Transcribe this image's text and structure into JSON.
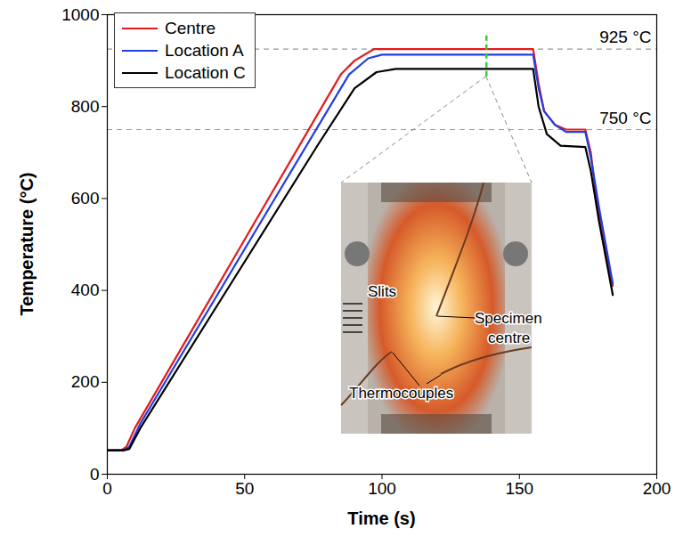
{
  "chart_data": {
    "type": "line",
    "xlabel": "Time (s)",
    "ylabel": "Temperature (°C)",
    "xlim": [
      0,
      200
    ],
    "xticks": [
      0,
      50,
      100,
      150,
      200
    ],
    "ylim": [
      0,
      1000
    ],
    "yticks": [
      0,
      200,
      400,
      600,
      800,
      1000
    ],
    "grid": false,
    "legend": "top-left",
    "series": [
      {
        "name": "Centre",
        "color": "#e41a1c",
        "x": [
          0,
          5,
          7,
          10,
          85,
          90,
          97,
          155,
          157,
          159,
          163,
          167,
          174,
          176,
          178,
          181,
          184
        ],
        "values": [
          52,
          52,
          60,
          100,
          870,
          900,
          925,
          925,
          850,
          790,
          760,
          750,
          750,
          700,
          600,
          500,
          410
        ]
      },
      {
        "name": "Location A",
        "color": "#1f3fe0",
        "x": [
          0,
          6,
          8,
          12,
          88,
          95,
          100,
          155,
          157,
          159,
          163,
          167,
          174,
          176,
          179,
          184
        ],
        "values": [
          52,
          52,
          60,
          110,
          870,
          905,
          913,
          913,
          840,
          790,
          760,
          745,
          745,
          690,
          580,
          415
        ]
      },
      {
        "name": "Location C",
        "color": "#000000",
        "x": [
          0,
          6,
          8,
          12,
          77,
          90,
          98,
          105,
          155,
          157,
          160,
          165,
          174,
          176,
          179,
          184
        ],
        "values": [
          52,
          52,
          55,
          100,
          720,
          840,
          875,
          882,
          882,
          800,
          740,
          715,
          712,
          660,
          550,
          390
        ]
      }
    ],
    "reference_lines": [
      {
        "y": 925,
        "label": "925 °C"
      },
      {
        "y": 750,
        "label": "750 °C"
      }
    ],
    "marker_time": 138,
    "inset_labels": [
      "Slits",
      "Thermocouples",
      "Specimen centre"
    ]
  }
}
